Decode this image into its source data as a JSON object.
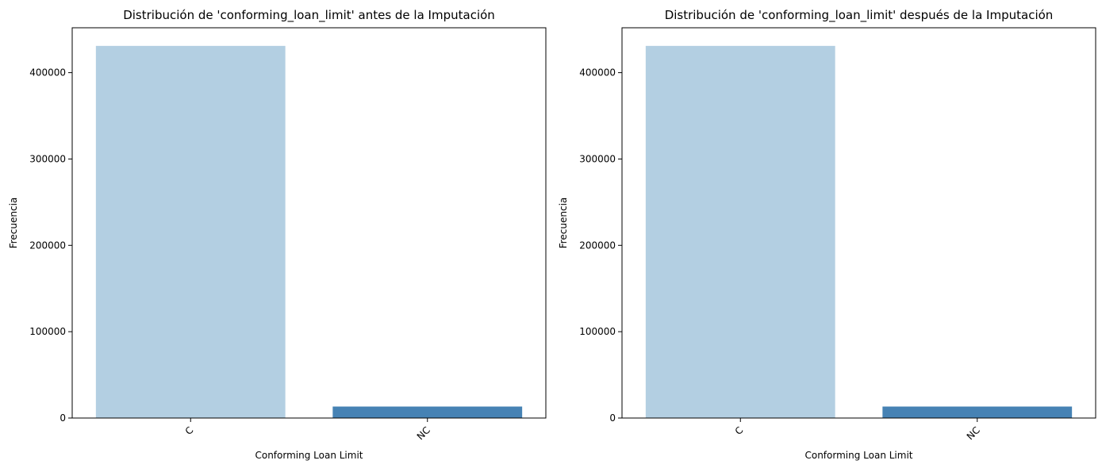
{
  "chart_data": [
    {
      "type": "bar",
      "title": "Distribución de 'conforming_loan_limit' antes de la Imputación",
      "xlabel": "Conforming Loan Limit",
      "ylabel": "Frecuencia",
      "categories": [
        "C",
        "NC"
      ],
      "values": [
        431000,
        13300
      ],
      "colors": [
        "#b3cfe2",
        "#4682b4"
      ],
      "ylim": [
        0,
        452000
      ],
      "yticks": [
        0,
        100000,
        200000,
        300000,
        400000
      ],
      "ytick_labels": [
        "0",
        "100000",
        "200000",
        "300000",
        "400000"
      ],
      "grid": false,
      "xtick_rotation": 45
    },
    {
      "type": "bar",
      "title": "Distribución de 'conforming_loan_limit' después de la Imputación",
      "xlabel": "Conforming Loan Limit",
      "ylabel": "Frecuencia",
      "categories": [
        "C",
        "NC"
      ],
      "values": [
        431000,
        13300
      ],
      "colors": [
        "#b3cfe2",
        "#4682b4"
      ],
      "ylim": [
        0,
        452000
      ],
      "yticks": [
        0,
        100000,
        200000,
        300000,
        400000
      ],
      "ytick_labels": [
        "0",
        "100000",
        "200000",
        "300000",
        "400000"
      ],
      "grid": false,
      "xtick_rotation": 45
    }
  ]
}
